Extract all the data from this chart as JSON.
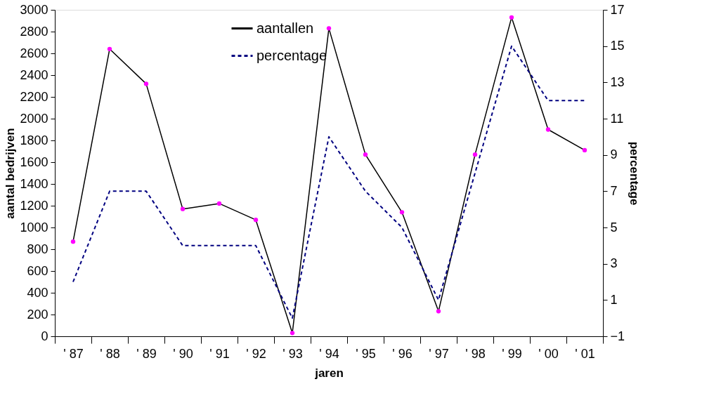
{
  "chart_data": {
    "type": "line",
    "xlabel": "jaren",
    "ylabel": "aantal bedrijven",
    "y2label": "percentage",
    "categories": [
      "' 87",
      "' 88",
      "' 89",
      "' 90",
      "' 91",
      "' 92",
      "' 93",
      "' 94",
      "' 95",
      "' 96",
      "' 97",
      "' 98",
      "' 99",
      "' 00",
      "' 01"
    ],
    "series": [
      {
        "name": "aantallen",
        "color": "#000000",
        "marker": "circle",
        "line_style": "solid",
        "values": [
          870,
          2640,
          2320,
          1170,
          1220,
          1070,
          30,
          2830,
          1670,
          1140,
          230,
          1670,
          2930,
          1900,
          1710
        ]
      },
      {
        "name": "percentage",
        "color": "#000080",
        "marker": "none",
        "line_style": "dashed",
        "axis": "y2",
        "values": [
          2,
          7,
          7,
          4,
          4,
          4,
          0,
          10,
          7,
          5,
          1,
          8,
          15,
          12,
          12
        ]
      }
    ],
    "ylim": [
      0,
      3000
    ],
    "yticks": [
      0,
      200,
      400,
      600,
      800,
      1000,
      1200,
      1400,
      1600,
      1800,
      2000,
      2200,
      2400,
      2600,
      2800,
      3000
    ],
    "y2lim": [
      -1,
      17
    ],
    "y2ticks": [
      -1,
      1,
      3,
      5,
      7,
      9,
      11,
      13,
      15,
      17
    ],
    "grid": false,
    "legend": "top left"
  }
}
